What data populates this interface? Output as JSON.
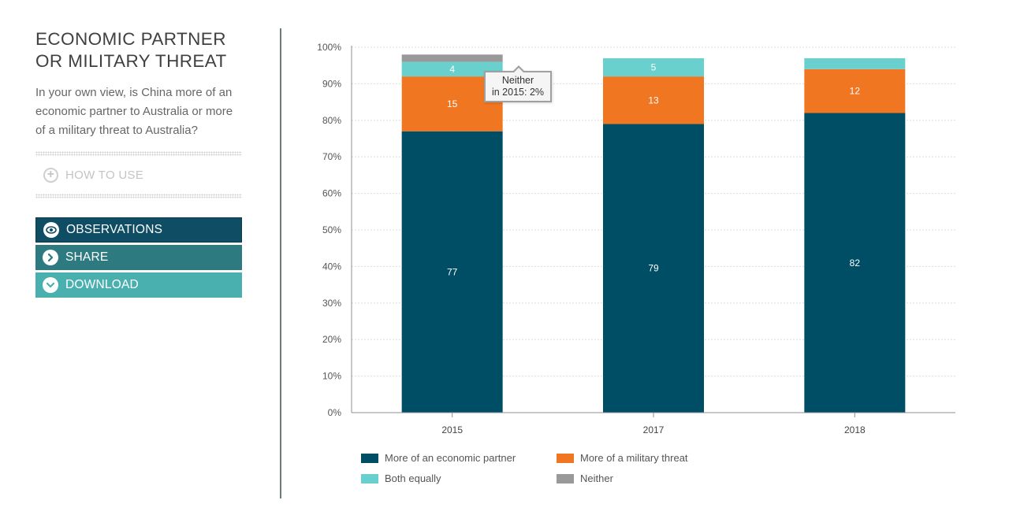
{
  "sidebar": {
    "title_line1": "ECONOMIC PARTNER",
    "title_line2": "OR MILITARY THREAT",
    "question": "In your own view, is China more of an economic partner to Australia or more of a military threat to Australia?",
    "how_to_use": "HOW TO USE",
    "buttons": {
      "observations": "OBSERVATIONS",
      "share": "SHARE",
      "download": "DOWNLOAD"
    },
    "icons": {
      "how_to_use": "plus-icon",
      "observations": "eye-icon",
      "share": "chevron-right-icon",
      "download": "chevron-down-icon"
    }
  },
  "tooltip": {
    "line1": "Neither",
    "line2": "in 2015: 2%"
  },
  "colors": {
    "economic": "#004d66",
    "military": "#f07622",
    "both": "#6ad0ce",
    "neither": "#999999",
    "grid": "#dddddd",
    "axis": "#8f8f8f"
  },
  "chart_data": {
    "type": "bar",
    "stacked": true,
    "title": "",
    "xlabel": "",
    "ylabel": "",
    "ylim": [
      0,
      100
    ],
    "y_tick_labels": [
      "0%",
      "10%",
      "20%",
      "30%",
      "40%",
      "50%",
      "60%",
      "70%",
      "80%",
      "90%",
      "100%"
    ],
    "categories": [
      "2015",
      "2017",
      "2018"
    ],
    "series": [
      {
        "key": "economic",
        "name": "More of an economic partner",
        "values": [
          77,
          79,
          82
        ],
        "labels": [
          "77",
          "79",
          "82"
        ]
      },
      {
        "key": "military",
        "name": "More of a military threat",
        "values": [
          15,
          13,
          12
        ],
        "labels": [
          "15",
          "13",
          "12"
        ]
      },
      {
        "key": "both",
        "name": "Both equally",
        "values": [
          4,
          5,
          3
        ],
        "labels": [
          "4",
          "5",
          ""
        ]
      },
      {
        "key": "neither",
        "name": "Neither",
        "values": [
          2,
          0,
          0
        ],
        "labels": [
          "",
          "",
          ""
        ]
      }
    ],
    "legend_position": "bottom"
  }
}
